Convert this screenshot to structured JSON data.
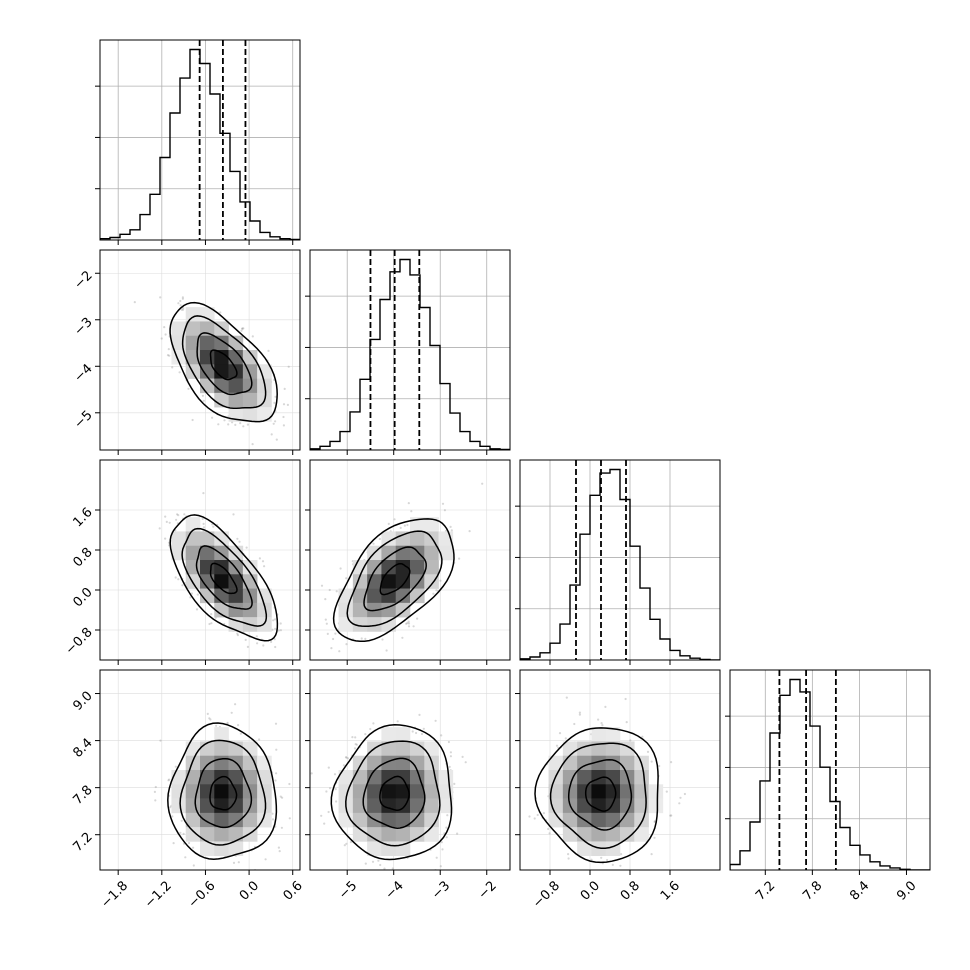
{
  "chart_data": {
    "type": "corner",
    "n_params": 4,
    "grid": true,
    "colors": {
      "line": "#000000",
      "grid": "#b0b0b0",
      "scatter": "#8c8c8c",
      "density_max": "#000000"
    },
    "parameters": [
      {
        "range": [
          -2.05,
          0.7
        ],
        "ticks": [
          -1.8,
          -1.2,
          -0.6,
          0.0,
          0.6
        ],
        "tick_labels": [
          "−1.8",
          "−1.2",
          "−0.6",
          "0.0",
          "0.6"
        ],
        "quantiles": [
          -0.68,
          -0.36,
          -0.05
        ],
        "mean": -0.36,
        "sd": 0.3
      },
      {
        "range": [
          -5.8,
          -1.5
        ],
        "ticks": [
          -5,
          -4,
          -3,
          -2
        ],
        "tick_labels": [
          "−5",
          "−4",
          "−3",
          "−2"
        ],
        "quantiles": [
          -4.5,
          -3.98,
          -3.45
        ],
        "mean": -3.98,
        "sd": 0.52
      },
      {
        "range": [
          -1.4,
          2.6
        ],
        "ticks": [
          -0.8,
          0.0,
          0.8,
          1.6
        ],
        "tick_labels": [
          "−0.8",
          "0.0",
          "0.8",
          "1.6"
        ],
        "quantiles": [
          -0.28,
          0.22,
          0.72
        ],
        "mean": 0.22,
        "sd": 0.5
      },
      {
        "range": [
          6.75,
          9.3
        ],
        "ticks": [
          7.2,
          7.8,
          8.4,
          9.0
        ],
        "tick_labels": [
          "7.2",
          "7.8",
          "8.4",
          "9.0"
        ],
        "quantiles": [
          7.38,
          7.72,
          8.1
        ],
        "mean": 7.72,
        "sd": 0.35
      }
    ],
    "correlations": {
      "1-0": -0.55,
      "2-0": -0.65,
      "2-1": 0.55,
      "3-0": 0.0,
      "3-1": 0.05,
      "3-2": 0.0
    },
    "histograms": [
      {
        "bins": 20,
        "counts": [
          2,
          4,
          9,
          16,
          40,
          72,
          130,
          200,
          255,
          300,
          278,
          230,
          168,
          108,
          60,
          30,
          12,
          5,
          2,
          1
        ]
      },
      {
        "bins": 20,
        "counts": [
          2,
          6,
          14,
          30,
          62,
          115,
          180,
          245,
          290,
          310,
          285,
          232,
          170,
          108,
          60,
          30,
          14,
          6,
          2,
          1
        ]
      },
      {
        "bins": 20,
        "counts": [
          2,
          5,
          12,
          28,
          60,
          125,
          210,
          275,
          312,
          318,
          268,
          190,
          120,
          68,
          35,
          16,
          7,
          3,
          1,
          0
        ]
      },
      {
        "bins": 20,
        "counts": [
          8,
          28,
          70,
          130,
          200,
          255,
          278,
          260,
          210,
          150,
          100,
          62,
          36,
          22,
          12,
          6,
          3,
          1,
          0,
          0
        ]
      }
    ]
  }
}
